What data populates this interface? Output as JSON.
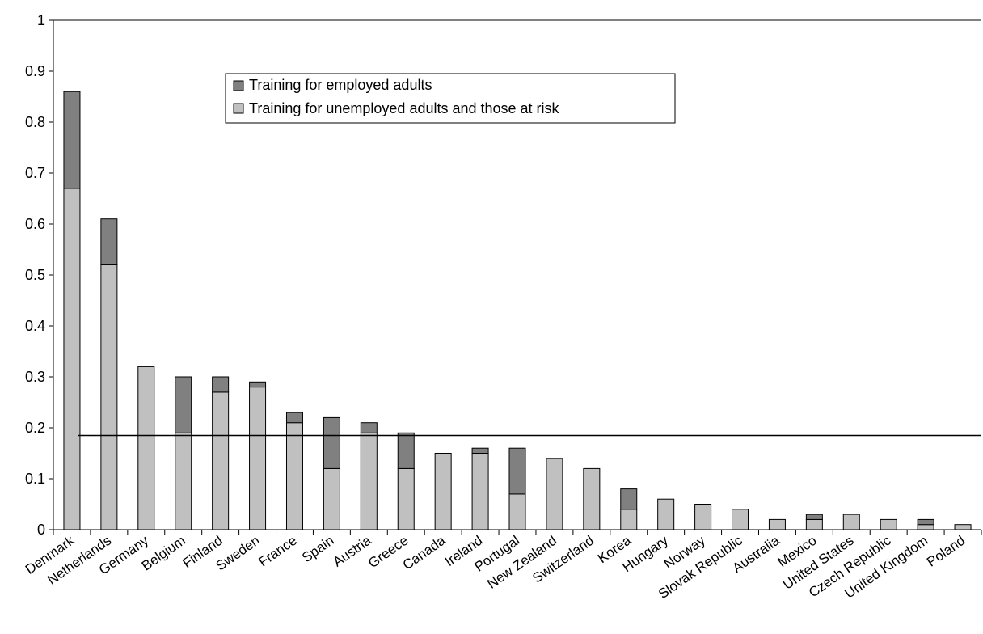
{
  "chart_data": {
    "type": "bar",
    "stacked": true,
    "categories": [
      "Denmark",
      "Netherlands",
      "Germany",
      "Belgium",
      "Finland",
      "Sweden",
      "France",
      "Spain",
      "Austria",
      "Greece",
      "Canada",
      "Ireland",
      "Portugal",
      "New Zealand",
      "Switzerland",
      "Korea",
      "Hungary",
      "Norway",
      "Slovak Republic",
      "Australia",
      "Mexico",
      "United States",
      "Czech Republic",
      "United Kingdom",
      "Poland"
    ],
    "series": [
      {
        "name": "Training for unemployed adults and those at risk",
        "color": "#c0c0c0",
        "values": [
          0.67,
          0.52,
          0.32,
          0.19,
          0.27,
          0.28,
          0.21,
          0.12,
          0.19,
          0.12,
          0.15,
          0.15,
          0.07,
          0.14,
          0.12,
          0.04,
          0.06,
          0.05,
          0.04,
          0.02,
          0.02,
          0.03,
          0.02,
          0.01,
          0.01
        ]
      },
      {
        "name": "Training for employed adults",
        "color": "#808080",
        "values": [
          0.19,
          0.09,
          0.0,
          0.11,
          0.03,
          0.01,
          0.02,
          0.1,
          0.02,
          0.07,
          0.0,
          0.01,
          0.09,
          0.0,
          0.0,
          0.04,
          0.0,
          0.0,
          0.0,
          0.0,
          0.01,
          0.0,
          0.0,
          0.01,
          0.0
        ]
      }
    ],
    "reference_line": 0.185,
    "ylim": [
      0,
      1
    ],
    "yticks": [
      "0",
      "0.1",
      "0.2",
      "0.3",
      "0.4",
      "0.5",
      "0.6",
      "0.7",
      "0.8",
      "0.9",
      "1"
    ],
    "legend": [
      "Training for employed adults",
      "Training for unemployed adults and those at risk"
    ],
    "legend_position": "top-center",
    "grid": false,
    "title": "",
    "xlabel": "",
    "ylabel": ""
  }
}
